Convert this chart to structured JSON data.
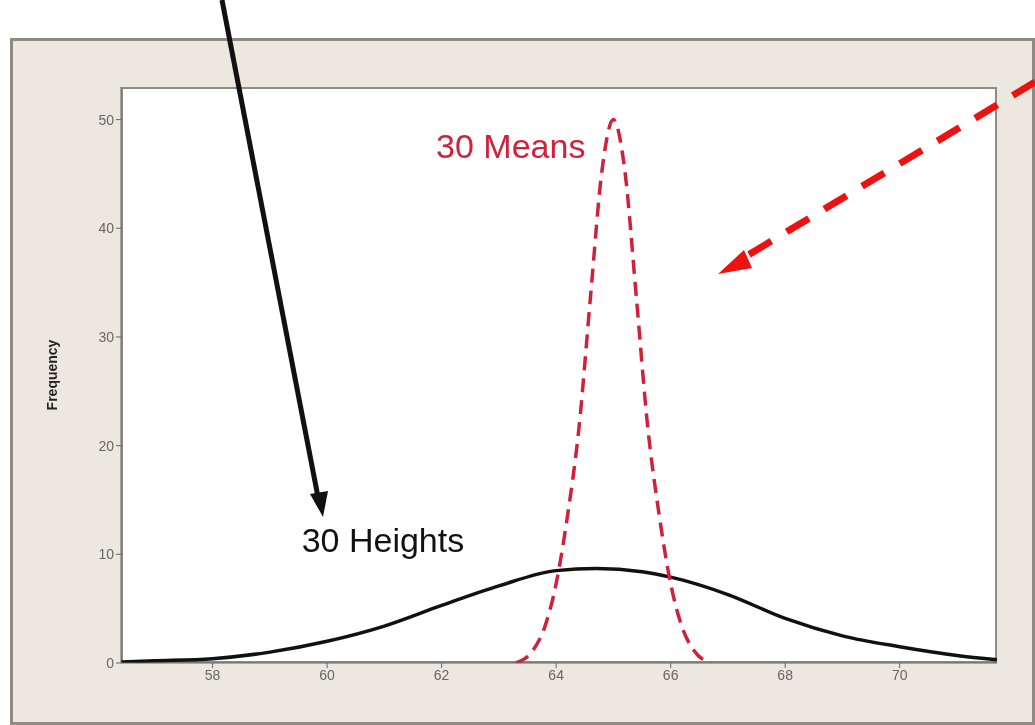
{
  "chart_data": {
    "type": "line",
    "ylabel": "Frequency",
    "xlim": [
      56.4,
      71.7
    ],
    "xticks": [
      58,
      60,
      62,
      64,
      66,
      68,
      70
    ],
    "ylim": [
      0,
      53
    ],
    "yticks": [
      0,
      10,
      20,
      30,
      40,
      50
    ],
    "marker": "none",
    "series": [
      {
        "name": "30 Heights",
        "color": "#111111",
        "line_style": "solid",
        "x": [
          56.4,
          57,
          58,
          59,
          60,
          61,
          62,
          63,
          64,
          64.7,
          65.5,
          66,
          67,
          68,
          69,
          70,
          71,
          71.7
        ],
        "values": [
          0.1,
          0.2,
          0.4,
          1.0,
          2.0,
          3.4,
          5.3,
          7.1,
          8.5,
          8.7,
          8.4,
          7.9,
          6.3,
          4.1,
          2.5,
          1.5,
          0.7,
          0.3
        ]
      },
      {
        "name": "30 Means",
        "color": "#d0213c",
        "line_style": "dashed",
        "x": [
          63.3,
          63.6,
          63.8,
          64.0,
          64.2,
          64.4,
          64.6,
          64.8,
          65.0,
          65.2,
          65.4,
          65.6,
          65.8,
          66.0,
          66.2,
          66.4,
          66.7
        ],
        "values": [
          0,
          1.2,
          3.3,
          7.3,
          13.6,
          21.7,
          33.7,
          45.3,
          50,
          45.3,
          33.7,
          21.7,
          13.6,
          7.3,
          3.3,
          1.2,
          0
        ]
      }
    ]
  }
}
